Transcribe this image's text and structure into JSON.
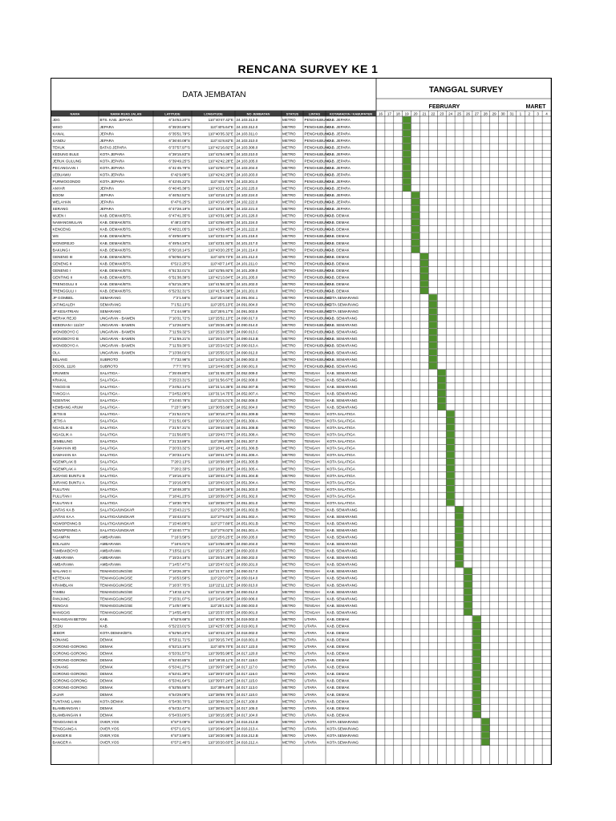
{
  "title": "RENCANA SURVEY KE 1",
  "data_header": "DATA JEMBATAN",
  "tanggal_header": "TANGGAL SURVEY",
  "months": [
    "FEBRUARY",
    "MARET"
  ],
  "columns": [
    "NAMA",
    "NAMA RUAS JALAN",
    "LATITUDE",
    "LONGITUDE",
    "NO JEMBATAN",
    "STATUS",
    "LINTAS",
    "KOTAMADYA / KABUPATEN"
  ],
  "days": [
    "16",
    "17",
    "18",
    "19",
    "20",
    "21",
    "22",
    "23",
    "24",
    "25",
    "26",
    "27",
    "28",
    "29",
    "30",
    "31",
    "1",
    "2",
    "3",
    "4"
  ],
  "colors": {
    "header_fill": "#3f3f3f",
    "bar_fill": "#4f8f2c",
    "grid": "#000000"
  },
  "rows": [
    [
      "JDG",
      "BTS. KAB. JEPARA",
      "6°34'53.20\"S",
      "110°40'47.42\"E",
      "24.103.313.0",
      "METRO",
      "PENGHUBUNG",
      "KAB. JEPARA",
      3
    ],
    [
      "WISO",
      "JEPARA",
      "6°35'20.66\"S",
      "110°40'5.64\"E",
      "24.103.312.0",
      "METRO",
      "PENGHUBUNG",
      "KAB. JEPARA",
      3
    ],
    [
      "KANAL",
      "JEPARA",
      "6°35'51.79\"S",
      "110°40'35.32\"E",
      "24.103.311.0",
      "METRO",
      "PENGHUBUNG",
      "KAB. JEPARA",
      3
    ],
    [
      "SANDU",
      "JEPARA",
      "6°36'40.08\"S",
      "110°41'8.82\"E",
      "24.103.310.0",
      "METRO",
      "PENGHUBUNG",
      "KAB. JEPARA",
      3
    ],
    [
      "TEKUK",
      "BATAS JEPARA",
      "6°37'57.97\"S",
      "110°42'16.82\"E",
      "24.103.308.0",
      "METRO",
      "PENGHUBUNG",
      "KAB. JEPARA",
      3
    ],
    [
      "KEDUNG BULE",
      "KOTA JEPARA",
      "6°39'15.83\"S",
      "110°42'54.96\"E",
      "24.103.210.0",
      "METRO",
      "PENGHUBUNG",
      "KAB. JEPARA",
      3
    ],
    [
      "JERUK GULUNG",
      "KOTA JEPARA",
      "6°39'49.25\"S",
      "110°42'42.28\"E",
      "24.103.205.0",
      "METRO",
      "PENGHUBUNG",
      "KAB. JEPARA",
      3
    ],
    [
      "PECANGAAN I",
      "KOTA JEPARA",
      "6°41'45.79\"S",
      "110°42'50.07\"E",
      "24.103.204.0",
      "METRO",
      "PENGHUBUNG",
      "KAB. JEPARA",
      3
    ],
    [
      "LEBUAWU",
      "KOTA JEPARA",
      "6°42'9.88\"S",
      "110°42'42.29\"E",
      "24.103.203.0",
      "METRO",
      "PENGHUBUNG",
      "KAB. JEPARA",
      3
    ],
    [
      "PURWOGONDO",
      "KOTA JEPARA",
      "6°43'45.22\"S",
      "110°43'8.76\"E",
      "24.103.201.0",
      "METRO",
      "PENGHUBUNG",
      "KAB. JEPARA",
      3
    ],
    [
      "ANYAR",
      "JEPARA",
      "6°46'45.38\"S",
      "110°43'21.62\"E",
      "24.102.225.0",
      "METRO",
      "PENGHUBUNG",
      "KAB. JEPARA",
      3
    ],
    [
      "BOOM",
      "JEPARA",
      "6°46'52.52\"S",
      "110°43'18.12\"E",
      "24.102.224.0",
      "METRO",
      "PENGHUBUNG",
      "KAB. JEPARA",
      4
    ],
    [
      "WELAHAN",
      "JEPARA",
      "6°47'6.25\"S",
      "110°43'16.00\"E",
      "24.102.222.0",
      "METRO",
      "PENGHUBUNG",
      "KAB. JEPARA",
      4
    ],
    [
      "SERANG",
      "JEPARA",
      "6°47'28.19\"S",
      "110°43'31.08\"E",
      "24.102.221.0",
      "METRO",
      "PENGHUBUNG",
      "KAB. JEPARA",
      4
    ],
    [
      "MIJEN I",
      "KAB. DEMAK/BTS.",
      "6°47'41.35\"S",
      "110°43'31.98\"E",
      "24.101.226.0",
      "METRO",
      "PENGHUBUNG",
      "KAB. DEMAK",
      4
    ],
    [
      "NAWANGWULAN",
      "KAB. DEMAK/BTS.",
      "6°48'2.03\"S",
      "110°43'56.80\"E",
      "24.101.224.0",
      "METRO",
      "PENGHUBUNG",
      "KAB. DEMAK",
      4
    ],
    [
      "KENCENG",
      "KAB. DEMAK/BTS.",
      "6°48'21.05\"S",
      "110°43'39.45\"E",
      "24.101.222.0",
      "METRO",
      "PENGHUBUNG",
      "KAB. DEMAK",
      4
    ],
    [
      "WS",
      "KAB. DEMAK/BTS.",
      "6°49'50.89\"S",
      "110°43'32.97\"E",
      "24.101.218.0",
      "METRO",
      "PENGHUBUNG",
      "KAB. DEMAK",
      4
    ],
    [
      "WONOREJO",
      "KAB. DEMAK/BTS.",
      "6°49'54.34\"S",
      "110°43'31.92\"E",
      "24.101.217.0",
      "METRO",
      "PENGHUBUNG",
      "KAB. DEMAK",
      4
    ],
    [
      "BAKUNG I",
      "KAB. DEMAK/BTS.",
      "6°50'18.14\"S",
      "110°43'20.25\"E",
      "24.101.214.0",
      "METRO",
      "PENGHUBUNG",
      "KAB. DEMAK",
      4
    ],
    [
      "GENENG III",
      "KAB. DEMAK/BTS.",
      "6°50'56.02\"S",
      "110°43'8.73\"E",
      "24.101.212.0",
      "METRO",
      "PENGHUBUNG",
      "KAB. DEMAK",
      5
    ],
    [
      "GENENG II",
      "KAB. DEMAK/BTS.",
      "6°51'2.25\"S",
      "110°43'7.14\"E",
      "24.101.211.0",
      "METRO",
      "PENGHUBUNG",
      "KAB. DEMAK",
      5
    ],
    [
      "GENENG I",
      "KAB. DEMAK/BTS.",
      "6°51'32.01\"S",
      "110°42'55.92\"E",
      "24.101.209.0",
      "METRO",
      "PENGHUBUNG",
      "KAB. DEMAK",
      5
    ],
    [
      "GENTING II",
      "KAB. DEMAK/BTS.",
      "6°51'38.39\"S",
      "110°42'13.84\"E",
      "24.101.205.0",
      "METRO",
      "PENGHUBUNG",
      "KAB. DEMAK",
      5
    ],
    [
      "TRENGGULI II",
      "KAB. DEMAK/BTS.",
      "6°52'15.35\"S",
      "110°41'58.32\"E",
      "24.101.202.0",
      "METRO",
      "PENGHUBUNG",
      "KAB. DEMAK",
      5
    ],
    [
      "TRENGGULI I",
      "KAB. DEMAK/BTS.",
      "6°52'32.31\"S",
      "110°41'54.38\"E",
      "24.101.201.0",
      "METRO",
      "PENGHUBUNG",
      "KAB. DEMAK",
      5
    ],
    [
      "JP GOMBEL",
      "SEMARANG",
      "7°2'1.56\"S",
      "110°25'3.56\"E",
      "24.091.004.1",
      "METRO",
      "PENGHUBUNG",
      "KOTA SEMARANG",
      6
    ],
    [
      "JATINGALEH",
      "SEMARANG",
      "7°1'52.13\"S",
      "110°25'5.13\"E",
      "24.091.004.0",
      "METRO",
      "PENGHUBUNG",
      "KOTA SEMARANG",
      6
    ],
    [
      "JP KESATRIAN",
      "SEMARANG",
      "7°1'44.99\"S",
      "110°25'6.17\"E",
      "24.091.003.9",
      "METRO",
      "PENGHUBUNG",
      "KOTA SEMARANG",
      6
    ],
    [
      "MERAK REJO",
      "UNGARAN - BAWEN",
      "7°10'31.72\"S",
      "110°25'52.13\"E",
      "24.090.017.0",
      "METRO",
      "PENGHUBUNG",
      "KAB. SEMARANG",
      6
    ],
    [
      "KEBONAN I 111/37",
      "UNGARAN - BAWEN",
      "7°12'26.50\"S",
      "110°25'26.48\"E",
      "24.090.014.0",
      "METRO",
      "PENGHUBUNG",
      "KAB. SEMARANG",
      6
    ],
    [
      "WONOBOYO C",
      "UNGARAN - BAWEN",
      "7°11'59.32\"S",
      "110°25'23.39\"E",
      "24.090.013.C",
      "METRO",
      "PENGHUBUNG",
      "KAB. SEMARANG",
      6
    ],
    [
      "WONOBOYO B",
      "UNGARAN - BAWEN",
      "7°11'59.21\"S",
      "110°25'24.07\"E",
      "24.090.013.B",
      "METRO",
      "PENGHUBUNG",
      "KAB. SEMARANG",
      6
    ],
    [
      "WONOBOYO A",
      "UNGARAN - BAWEN",
      "7°11'59.30\"S",
      "110°25'24.52\"E",
      "24.090.013.A",
      "METRO",
      "PENGHUBUNG",
      "KAB. SEMARANG",
      6
    ],
    [
      "OLA",
      "UNGARAN - BAWEN",
      "7°13'38.02\"S",
      "110°25'55.51\"E",
      "24.090.012.0",
      "METRO",
      "PENGHUBUNG",
      "KAB. SEMARANG",
      6
    ],
    [
      "BELANG",
      "SUBROTO",
      "7°7'32.96\"S",
      "110°24'20.52\"E",
      "24.090.002.0",
      "METRO",
      "PENGHUBUNG",
      "KAB. SEMARANG",
      6
    ],
    [
      "DODOL 111/6",
      "SUBROTO",
      "7°7'7.70\"S",
      "110°24'43.85\"E",
      "24.090.001.0",
      "METRO",
      "PENGHUBUNG",
      "KAB. SEMARANG",
      6
    ],
    [
      "SRUWEN",
      "SALATIGA -",
      "7°25'49.80\"S",
      "110°31'49.33\"E",
      "24.052.009.0",
      "METRO",
      "TENGAH",
      "KAB. SEMARANG",
      7
    ],
    [
      "KRAKAL",
      "SALATIGA -",
      "7°25'23.31\"S",
      "110°31'56.67\"E",
      "24.052.008.0",
      "METRO",
      "TENGAH",
      "KAB. SEMARANG",
      7
    ],
    [
      "TANGGI B",
      "SALATIGA -",
      "7°24'52.14\"S",
      "110°31'14.35\"E",
      "24.052.007.B",
      "METRO",
      "TENGAH",
      "KAB. SEMARANG",
      7
    ],
    [
      "TANGGI A",
      "SALATIGA -",
      "7°24'52.06\"S",
      "110°31'14.75\"E",
      "24.052.007.A",
      "METRO",
      "TENGAH",
      "KAB. SEMARANG",
      7
    ],
    [
      "NGENTAK",
      "SALATIGA -",
      "7°24'40.78\"S",
      "110°31'5.01\"E",
      "24.052.006.0",
      "METRO",
      "TENGAH",
      "KAB. SEMARANG",
      7
    ],
    [
      "KEMBANG ARUM",
      "SALATIGA -",
      "7°23'7.99\"S",
      "110°30'53.88\"E",
      "24.052.004.0",
      "METRO",
      "TENGAH",
      "KAB. SEMARANG",
      7
    ],
    [
      "JETIS B",
      "SALATIGA -",
      "7°21'52.01\"S",
      "110°30'18.27\"E",
      "24.051.309.B",
      "METRO",
      "TENGAH",
      "KOTA SALATIGA",
      8
    ],
    [
      "JETIS A",
      "SALATIGA",
      "7°21'51.66\"S",
      "110°30'18.01\"E",
      "24.051.309.A",
      "METRO",
      "TENGAH",
      "KOTA SALATIGA",
      8
    ],
    [
      "NGAGLIK B",
      "SALATIGA",
      "7°21'57.31\"S",
      "110°29'43.55\"E",
      "24.051.308.B",
      "METRO",
      "TENGAH",
      "KOTA SALATIGA",
      8
    ],
    [
      "NGAGLIK A",
      "SALATIGA",
      "7°21'56.85\"S",
      "110°29'43.77\"E",
      "24.051.308.A",
      "METRO",
      "TENGAH",
      "KOTA SALATIGA",
      8
    ],
    [
      "JEMBLUNG",
      "SALATIGA",
      "7°21'33.89\"S",
      "110°29'5.85\"E",
      "24.051.307.0",
      "METRO",
      "TENGAH",
      "KOTA SALATIGA",
      8
    ],
    [
      "SAWAHAN IIB",
      "SALATIGA",
      "7°20'33.32\"S",
      "110°28'41.43\"E",
      "24.051.306.B",
      "METRO",
      "TENGAH",
      "KOTA SALATIGA",
      8
    ],
    [
      "SAWAHAN IIA",
      "SALATIGA",
      "7°20'33.14\"S",
      "110°28'41.57\"E",
      "24.051.306.A",
      "METRO",
      "TENGAH",
      "KOTA SALATIGA",
      8
    ],
    [
      "NGEMPLAK B",
      "SALATIGA",
      "7°20'2.13\"S",
      "110°28'38.80\"E",
      "24.051.305.B",
      "METRO",
      "TENGAH",
      "KOTA SALATIGA",
      8
    ],
    [
      "NGEMPLAK A",
      "SALATIGA",
      "7°20'2.33\"S",
      "110°28'39.18\"E",
      "24.051.305.A",
      "METRO",
      "TENGAH",
      "KOTA SALATIGA",
      8
    ],
    [
      "JURANG BUNTU B",
      "SALATIGA",
      "7°19'16.10\"S",
      "110°28'43.47\"E",
      "24.051.304.B",
      "METRO",
      "TENGAH",
      "KOTA SALATIGA",
      8
    ],
    [
      "JURANG BUNTU A",
      "SALATIGA",
      "7°19'16.06\"S",
      "110°28'43.91\"E",
      "24.051.304.A",
      "METRO",
      "TENGAH",
      "KOTA SALATIGA",
      8
    ],
    [
      "PULUTAN",
      "SALATIGA",
      "7°18'48.30\"S",
      "110°28'36.59\"E",
      "24.051.303.0",
      "METRO",
      "TENGAH",
      "KOTA SALATIGA",
      8
    ],
    [
      "PULUTAN I",
      "SALATIGA",
      "7°18'41.23\"S",
      "110°28'39.07\"E",
      "24.051.302.0",
      "METRO",
      "TENGAH",
      "KOTA SALATIGA",
      8
    ],
    [
      "PULUTAN II",
      "SALATIGA",
      "7°18'30.78\"S",
      "110°28'38.07\"E",
      "24.051.301.0",
      "METRO",
      "TENGAH",
      "KOTA SALATIGA",
      8
    ],
    [
      "LINTAS KA B",
      "SALATIGA/UNGKAR",
      "7°15'43.21\"S",
      "110°27'9.35\"E",
      "24.051.002.B",
      "METRO",
      "TENGAH",
      "KAB. SEMARANG",
      9
    ],
    [
      "LINTAS KA A",
      "SALATIGA/UNGKAR",
      "7°15'43.02\"S",
      "110°27'9.62\"E",
      "24.051.002.A",
      "METRO",
      "TENGAH",
      "KAB. SEMARANG",
      9
    ],
    [
      "NGWOPENNG B",
      "SALATIGA/UNGKAR",
      "7°15'40.86\"S",
      "110°27'7.89\"E",
      "24.051.001.B",
      "METRO",
      "TENGAH",
      "KAB. SEMARANG",
      9
    ],
    [
      "NGWOPENNG A",
      "SALATIGA/UNGKAR",
      "7°15'40.77\"S",
      "110°27'8.02\"E",
      "24.051.001.A",
      "METRO",
      "TENGAH",
      "KAB. SEMARANG",
      9
    ],
    [
      "NGAMPIN",
      "AMBARAWA",
      "7°16'3.58\"S",
      "110°25'6.25\"E",
      "24.050.205.0",
      "METRO",
      "TENGAH",
      "KAB. SEMARANG",
      9
    ],
    [
      "BOLALEN",
      "AMBARAWA",
      "7°16'6.01\"S",
      "110°24'56.89\"E",
      "24.050.204.0",
      "METRO",
      "TENGAH",
      "KAB. SEMARANG",
      9
    ],
    [
      "TAMBAKBOYO",
      "AMBARAWA",
      "7°15'52.11\"S",
      "110°25'17.28\"E",
      "24.050.203.0",
      "METRO",
      "TENGAH",
      "KAB. SEMARANG",
      9
    ],
    [
      "AMBARAWA",
      "AMBARAWA",
      "7°15'24.16\"S",
      "110°25'34.29\"E",
      "24.050.202.0",
      "METRO",
      "TENGAH",
      "KAB. SEMARANG",
      9
    ],
    [
      "AMBARAWA",
      "AMBARAWA",
      "7°14'57.47\"S",
      "110°25'47.61\"E",
      "24.050.201.0",
      "METRO",
      "TENGAH",
      "KAB. SEMARANG",
      9
    ],
    [
      "MALANG II",
      "TEMANGGUNG/SE",
      "7°18'26.30\"S",
      "110°21'47.53\"E",
      "24.050.017.0",
      "METRO",
      "TENGAH",
      "KAB. SEMARANG",
      10
    ],
    [
      "KETEKAN",
      "TEMANGGUNG/SE",
      "7°16'53.58\"S",
      "110°22'0.07\"E",
      "24.050.014.0",
      "METRO",
      "TENGAH",
      "KAB. SEMARANG",
      10
    ],
    [
      "KRAMBLAN",
      "TEMANGGUNG/SE",
      "7°16'37.75\"S",
      "110°22'11.12\"E",
      "24.050.013.0",
      "METRO",
      "TENGAH",
      "KAB. SEMARANG",
      10
    ],
    [
      "TAMBU",
      "TEMANGGUNG/SE",
      "7°16'32.11\"S",
      "110°22'19.30\"E",
      "24.050.012.0",
      "METRO",
      "TENGAH",
      "KAB. SEMARANG",
      10
    ],
    [
      "PANJANG",
      "TEMANGGUNG/SE",
      "7°15'31.07\"S",
      "110°24'15.59\"E",
      "24.050.006.0",
      "METRO",
      "TENGAH",
      "KAB. SEMARANG",
      10
    ],
    [
      "RENGAS",
      "TEMANGGUNG/SE",
      "7°14'57.98\"S",
      "110°25'1.51\"E",
      "24.050.003.0",
      "METRO",
      "TENGAH",
      "KAB. SEMARANG",
      10
    ],
    [
      "MANGGIS",
      "TEMANGGUNG/SE",
      "7°14'55.49\"S",
      "110°25'37.83\"E",
      "24.050.001.0",
      "METRO",
      "TENGAH",
      "KAB. SEMARANG",
      10
    ],
    [
      "PASANGAN BETON",
      "KAB.",
      "6°52'8.66\"S",
      "110°40'30.75\"E",
      "24.019.002.0",
      "METRO",
      "UTARA",
      "KAB. DEMAK",
      11
    ],
    [
      "SEDU",
      "KAB.",
      "6°52'23.01\"S",
      "110°42'57.05\"E",
      "24.019.001.0",
      "METRO",
      "UTARA",
      "KAB. DEMAK",
      11
    ],
    [
      "JEBOR",
      "KOTA DEMAK/BTS.",
      "6°52'50.23\"S",
      "110°40'43.22\"E",
      "24.018.002.0",
      "METRO",
      "UTARA",
      "KAB. DEMAK",
      11
    ],
    [
      "KONANG",
      "DEMAK",
      "6°53'11.71\"S",
      "110°39'15.74\"E",
      "24.018.001.0",
      "METRO",
      "UTARA",
      "KAB. DEMAK",
      11
    ],
    [
      "GORONG-GORONG",
      "DEMAK",
      "6°53'13.16\"S",
      "110°40'9.70\"E",
      "24.017.123.0",
      "METRO",
      "UTARA",
      "KAB. DEMAK",
      11
    ],
    [
      "GORONG-GORONG",
      "DEMAK",
      "6°53'31.57\"S",
      "110°39'55.98\"E",
      "24.017.120.0",
      "METRO",
      "UTARA",
      "KAB. DEMAK",
      11
    ],
    [
      "GORONG-GORONG",
      "DEMAK",
      "6°53'40.85\"S",
      "110°39'30.11\"E",
      "24.017.118.0",
      "METRO",
      "UTARA",
      "KAB. DEMAK",
      11
    ],
    [
      "KONANG",
      "DEMAK",
      "6°53'41.27\"S",
      "110°39'37.99\"E",
      "24.017.117.0",
      "METRO",
      "UTARA",
      "KAB. DEMAK",
      11
    ],
    [
      "GORONG-GORONG",
      "DEMAK",
      "6°53'41.39\"S",
      "110°39'37.63\"E",
      "24.017.116.0",
      "METRO",
      "UTARA",
      "KAB. DEMAK",
      11
    ],
    [
      "GORONG-GORONG",
      "DEMAK",
      "6°53'41.64\"S",
      "110°39'37.24\"E",
      "24.017.115.0",
      "METRO",
      "UTARA",
      "KAB. DEMAK",
      11
    ],
    [
      "GORONG-GORONG",
      "DEMAK",
      "6°53'55.55\"S",
      "110°39'9.49\"E",
      "24.017.113.0",
      "METRO",
      "UTARA",
      "KAB. DEMAK",
      11
    ],
    [
      "JAJAR",
      "DEMAK",
      "6°54'29.08\"S",
      "110°38'59.78\"E",
      "24.017.110.0",
      "METRO",
      "UTARA",
      "KAB. DEMAK",
      11
    ],
    [
      "TUNTANG LAMA",
      "KOTA DEMAK",
      "6°54'30.70\"S",
      "110°38'48.51\"E",
      "24.017.109.0",
      "METRO",
      "UTARA",
      "KAB. DEMAK",
      11
    ],
    [
      "BLAMBANGAN I",
      "DEMAK",
      "6°54'32.47\"S",
      "110°38'25.91\"E",
      "24.017.105.0",
      "METRO",
      "UTARA",
      "KAB. DEMAK",
      11
    ],
    [
      "BLAMBANGAN II",
      "DEMAK",
      "6°54'33.00\"S",
      "110°38'15.95\"E",
      "24.017.104.0",
      "METRO",
      "UTARA",
      "KAB. DEMAK",
      11
    ],
    [
      "TENGGANG B",
      "OVER,YOS",
      "6°57'3.09\"S",
      "110°26'50.43\"E",
      "24.016.213.B",
      "METRO",
      "UTARA",
      "KOTA SEMARANG",
      12
    ],
    [
      "TENGGANG A",
      "OVER,YOS",
      "6°57'1.61\"S",
      "110°26'49.90\"E",
      "24.016.213.A",
      "METRO",
      "UTARA",
      "KOTA SEMARANG",
      12
    ],
    [
      "BANGER B",
      "OVER,YOS",
      "6°57'3.59\"S",
      "110°26'20.95\"E",
      "24.016.212.B",
      "METRO",
      "UTARA",
      "KOTA SEMARANG",
      12
    ],
    [
      "BANGER A",
      "OVER,YOS",
      "6°57'2.46\"S",
      "110°26'20.63\"E",
      "24.016.212.A",
      "METRO",
      "UTARA",
      "KOTA SEMARANG",
      12
    ]
  ]
}
